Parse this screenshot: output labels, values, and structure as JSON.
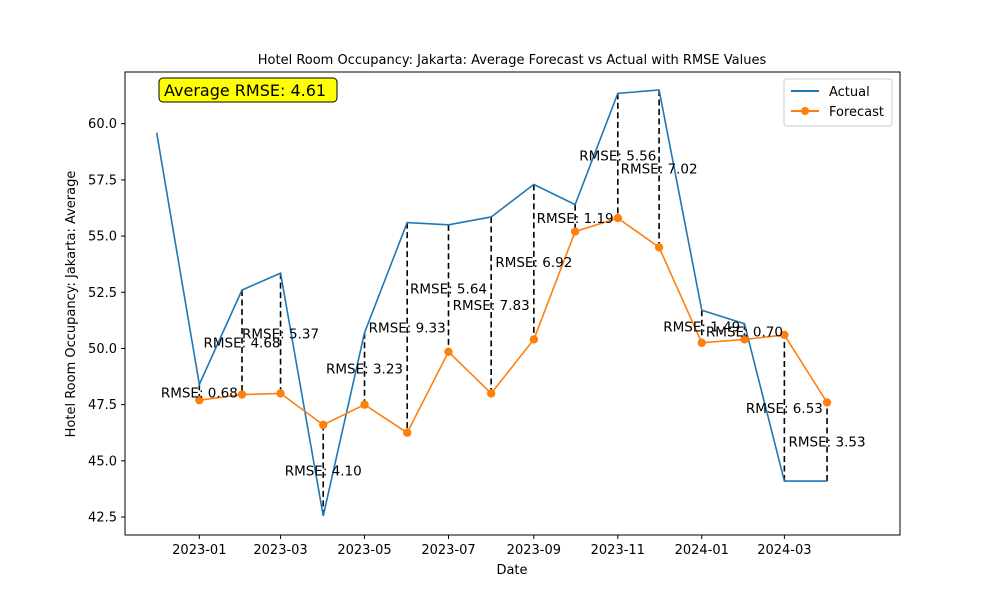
{
  "chart_data": {
    "type": "line",
    "title": "Hotel Room Occupancy: Jakarta: Average Forecast vs Actual with RMSE Values",
    "xlabel": "Date",
    "ylabel": "Hotel Room Occupancy: Jakarta: Average",
    "xlim": [
      "2022-11-08",
      "2024-05-24"
    ],
    "ylim": [
      41.7,
      62.3
    ],
    "x_ticks": [
      "2023-01",
      "2023-03",
      "2023-05",
      "2023-07",
      "2023-09",
      "2023-11",
      "2024-01",
      "2024-03"
    ],
    "y_ticks": [
      42.5,
      45.0,
      47.5,
      50.0,
      52.5,
      55.0,
      57.5,
      60.0
    ],
    "y_tick_labels": [
      "42.5",
      "45.0",
      "47.5",
      "50.0",
      "52.5",
      "55.0",
      "57.5",
      "60.0"
    ],
    "legend": {
      "position": "top-right",
      "entries": [
        "Actual",
        "Forecast"
      ]
    },
    "grid": false,
    "average_rmse_label": "Average RMSE: 4.61",
    "series": [
      {
        "name": "Actual",
        "color": "#1f77b4",
        "marker": "none",
        "x": [
          "2022-12-01",
          "2023-01-01",
          "2023-02-01",
          "2023-03-01",
          "2023-04-01",
          "2023-05-01",
          "2023-06-01",
          "2023-07-01",
          "2023-08-01",
          "2023-09-01",
          "2023-10-01",
          "2023-11-01",
          "2023-12-01",
          "2024-01-01",
          "2024-02-01",
          "2024-03-01",
          "2024-04-01"
        ],
        "values": [
          59.6,
          48.4,
          52.6,
          53.35,
          42.55,
          50.7,
          55.6,
          55.5,
          55.85,
          57.3,
          56.4,
          61.35,
          61.5,
          51.7,
          51.1,
          44.1,
          44.1
        ]
      },
      {
        "name": "Forecast",
        "color": "#ff7f0e",
        "marker": "circle",
        "x": [
          "2023-01-01",
          "2023-02-01",
          "2023-03-01",
          "2023-04-01",
          "2023-05-01",
          "2023-06-01",
          "2023-07-01",
          "2023-08-01",
          "2023-09-01",
          "2023-10-01",
          "2023-11-01",
          "2023-12-01",
          "2024-01-01",
          "2024-02-01",
          "2024-03-01",
          "2024-04-01"
        ],
        "values": [
          47.7,
          47.95,
          48.0,
          46.6,
          47.5,
          46.25,
          49.85,
          48.0,
          50.4,
          55.2,
          55.8,
          54.5,
          50.25,
          50.4,
          50.6,
          47.6
        ]
      }
    ],
    "rmse_annotations": [
      {
        "date": "2023-01-01",
        "label": "RMSE: 0.68",
        "value": 0.68
      },
      {
        "date": "2023-02-01",
        "label": "RMSE: 4.68",
        "value": 4.68
      },
      {
        "date": "2023-03-01",
        "label": "RMSE: 5.37",
        "value": 5.37
      },
      {
        "date": "2023-04-01",
        "label": "RMSE: 4.10",
        "value": 4.1
      },
      {
        "date": "2023-05-01",
        "label": "RMSE: 3.23",
        "value": 3.23
      },
      {
        "date": "2023-06-01",
        "label": "RMSE: 9.33",
        "value": 9.33
      },
      {
        "date": "2023-07-01",
        "label": "RMSE: 5.64",
        "value": 5.64
      },
      {
        "date": "2023-08-01",
        "label": "RMSE: 7.83",
        "value": 7.83
      },
      {
        "date": "2023-09-01",
        "label": "RMSE: 6.92",
        "value": 6.92
      },
      {
        "date": "2023-10-01",
        "label": "RMSE: 1.19",
        "value": 1.19
      },
      {
        "date": "2023-11-01",
        "label": "RMSE: 5.56",
        "value": 5.56
      },
      {
        "date": "2023-12-01",
        "label": "RMSE: 7.02",
        "value": 7.02
      },
      {
        "date": "2024-01-01",
        "label": "RMSE: 1.49",
        "value": 1.49
      },
      {
        "date": "2024-02-01",
        "label": "RMSE: 0.70",
        "value": 0.7
      },
      {
        "date": "2024-03-01",
        "label": "RMSE: 6.53",
        "value": 6.53
      },
      {
        "date": "2024-04-01",
        "label": "RMSE: 3.53",
        "value": 3.53
      }
    ]
  }
}
